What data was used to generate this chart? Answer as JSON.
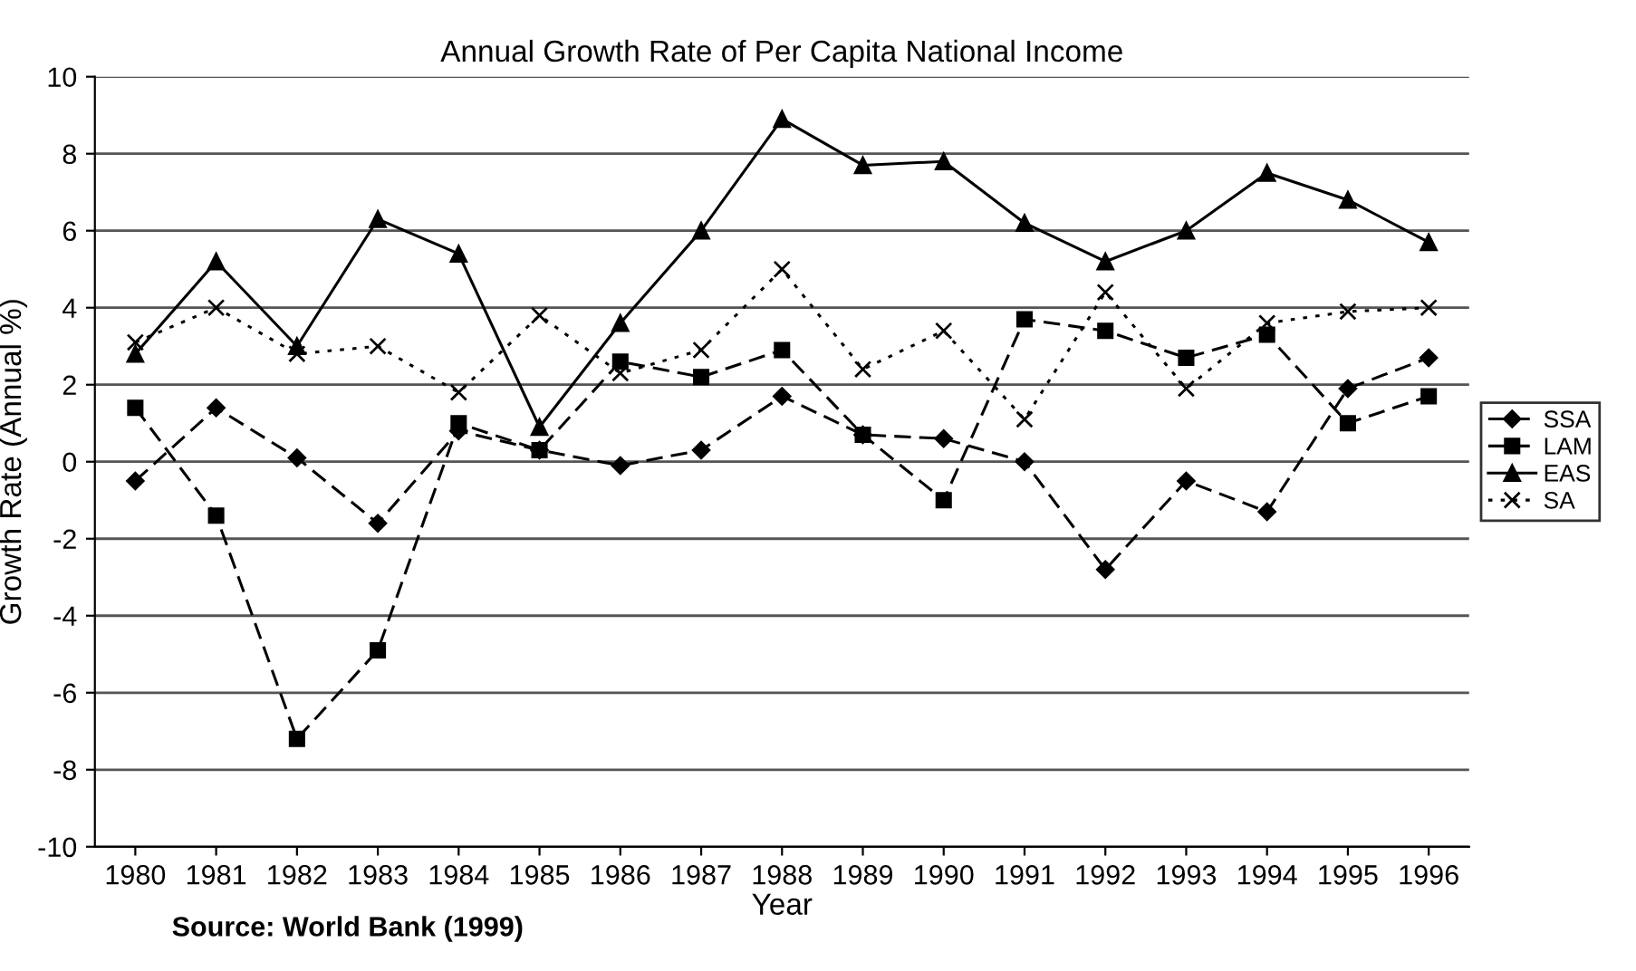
{
  "chart_data": {
    "type": "line",
    "title": "Annual Growth Rate of Per Capita National Income",
    "xlabel": "Year",
    "ylabel": "Growth Rate (Annual %)",
    "categories": [
      "1980",
      "1981",
      "1982",
      "1983",
      "1984",
      "1985",
      "1986",
      "1987",
      "1988",
      "1989",
      "1990",
      "1991",
      "1992",
      "1993",
      "1994",
      "1995",
      "1996"
    ],
    "series": [
      {
        "name": "SSA",
        "color": "#000000",
        "marker": "diamond",
        "line_style": "dashed",
        "values": [
          -0.5,
          1.4,
          0.1,
          -1.6,
          0.8,
          0.3,
          -0.1,
          0.3,
          1.7,
          0.7,
          0.6,
          0.0,
          -2.8,
          -0.5,
          -1.3,
          1.9,
          2.7
        ]
      },
      {
        "name": "LAM",
        "color": "#000000",
        "marker": "square",
        "line_style": "dashed",
        "values": [
          1.4,
          -1.4,
          -7.2,
          -4.9,
          1.0,
          0.3,
          2.6,
          2.2,
          2.9,
          0.7,
          -1.0,
          3.7,
          3.4,
          2.7,
          3.3,
          1.0,
          1.7
        ]
      },
      {
        "name": "EAS",
        "color": "#000000",
        "marker": "triangle",
        "line_style": "solid",
        "values": [
          2.8,
          5.2,
          3.0,
          6.3,
          5.4,
          0.9,
          3.6,
          6.0,
          8.9,
          7.7,
          7.8,
          6.2,
          5.2,
          6.0,
          7.5,
          6.8,
          5.7
        ]
      },
      {
        "name": "SA",
        "color": "#000000",
        "marker": "cross",
        "line_style": "dotted",
        "values": [
          3.1,
          4.0,
          2.8,
          3.0,
          1.8,
          3.8,
          2.3,
          2.9,
          5.0,
          2.4,
          3.4,
          1.1,
          4.4,
          1.9,
          3.6,
          3.9,
          4.0
        ]
      }
    ],
    "ylim": [
      -10,
      10
    ],
    "yticks": [
      -10,
      -8,
      -6,
      -4,
      -2,
      0,
      2,
      4,
      6,
      8,
      10
    ],
    "grid": "y",
    "legend": "right",
    "annotations": [
      "Source: World Bank (1999)"
    ]
  }
}
